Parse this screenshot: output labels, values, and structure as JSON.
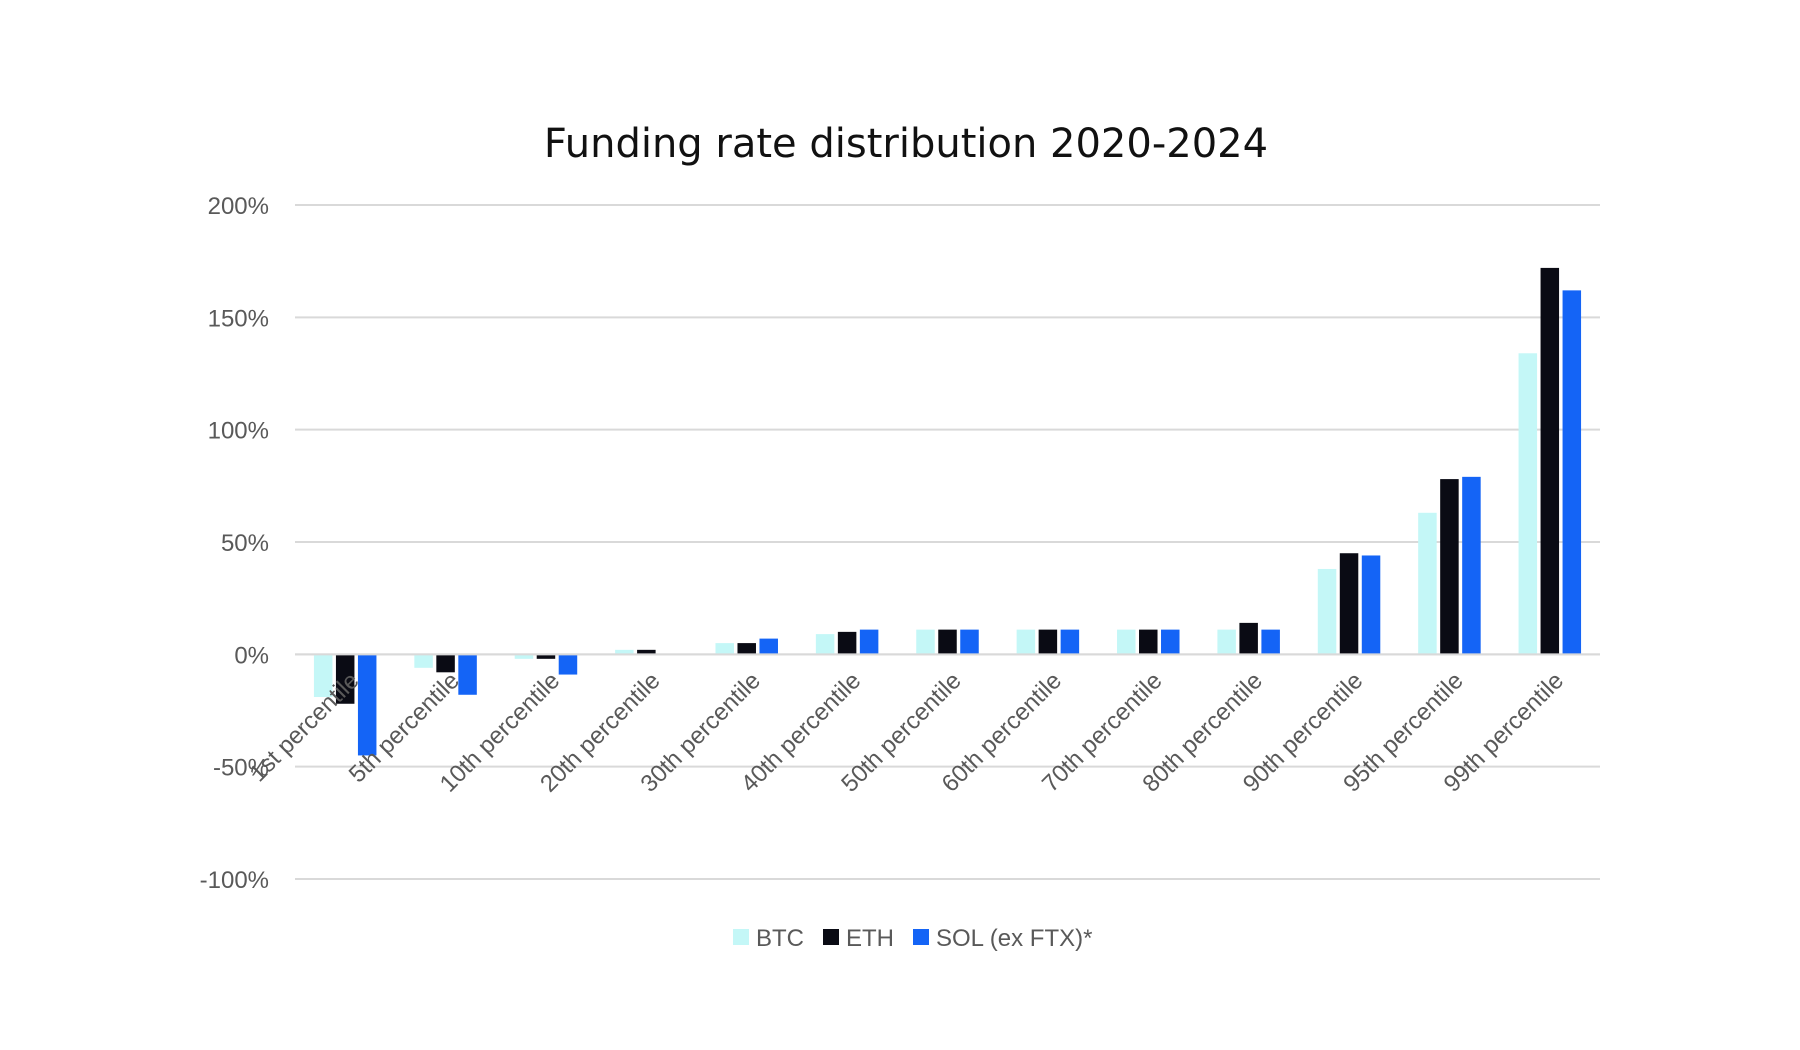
{
  "chart_data": {
    "type": "bar",
    "title": "Funding rate distribution 2020-2024",
    "xlabel": "",
    "ylabel": "",
    "ylim": [
      -100,
      200
    ],
    "y_ticks": [
      {
        "value": 200,
        "label": "200%"
      },
      {
        "value": 150,
        "label": "150%"
      },
      {
        "value": 100,
        "label": "100%"
      },
      {
        "value": 50,
        "label": "50%"
      },
      {
        "value": 0,
        "label": "0%"
      },
      {
        "value": -50,
        "label": "-50%"
      },
      {
        "value": -100,
        "label": "-100%"
      }
    ],
    "grid": true,
    "legend_position": "bottom",
    "categories": [
      "1st percentile",
      "5th percentile",
      "10th percentile",
      "20th percentile",
      "30th percentile",
      "40th percentile",
      "50th percentile",
      "60th percentile",
      "70th percentile",
      "80th percentile",
      "90th percentile",
      "95th percentile",
      "99th percentile"
    ],
    "series": [
      {
        "name": "BTC",
        "color": "#c4f7f7",
        "values": [
          -19,
          -6,
          -2,
          2,
          5,
          9,
          11,
          11,
          11,
          11,
          38,
          63,
          134
        ]
      },
      {
        "name": "ETH",
        "color": "#0a0b14",
        "values": [
          -22,
          -8,
          -2,
          2,
          5,
          10,
          11,
          11,
          11,
          14,
          45,
          78,
          172
        ]
      },
      {
        "name": "SOL (ex FTX)*",
        "color": "#1464f6",
        "values": [
          -45,
          -18,
          -9,
          0,
          7,
          11,
          11,
          11,
          11,
          11,
          44,
          79,
          162
        ]
      }
    ]
  }
}
